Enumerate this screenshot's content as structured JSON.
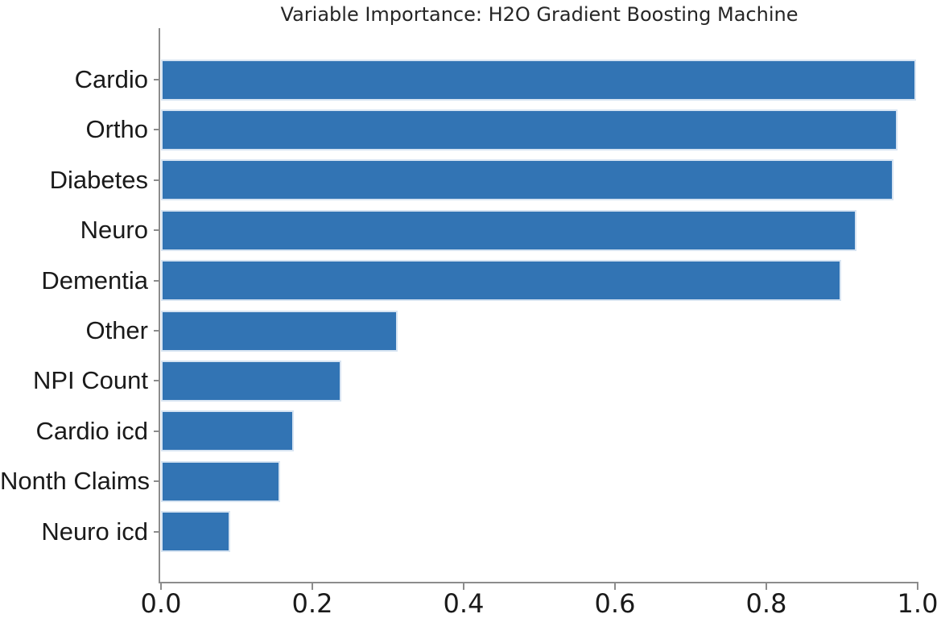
{
  "chart_data": {
    "type": "bar",
    "orientation": "horizontal",
    "title": "Variable Importance: H2O Gradient Boosting Machine",
    "categories": [
      "Cardio",
      "Ortho",
      "Diabetes",
      "Neuro",
      "Dementia",
      "Other",
      "NPI Count",
      "Cardio icd",
      "Nonth Claims",
      "Neuro icd"
    ],
    "values": [
      0.998,
      0.973,
      0.968,
      0.919,
      0.899,
      0.313,
      0.238,
      0.176,
      0.157,
      0.092
    ],
    "xlabel": "",
    "ylabel": "",
    "xlim": [
      0.0,
      1.0
    ],
    "x_ticks": [
      "0.0",
      "0.2",
      "0.4",
      "0.6",
      "0.8",
      "1.0"
    ],
    "x_tick_values": [
      0.0,
      0.2,
      0.4,
      0.6,
      0.8,
      1.0
    ],
    "grid": false,
    "legend": null,
    "bar_color": "#3274B4",
    "bar_edge_color": "#D7E4F2",
    "axis_color": "#8C8C8C",
    "text_color": "#1A1A1A"
  }
}
